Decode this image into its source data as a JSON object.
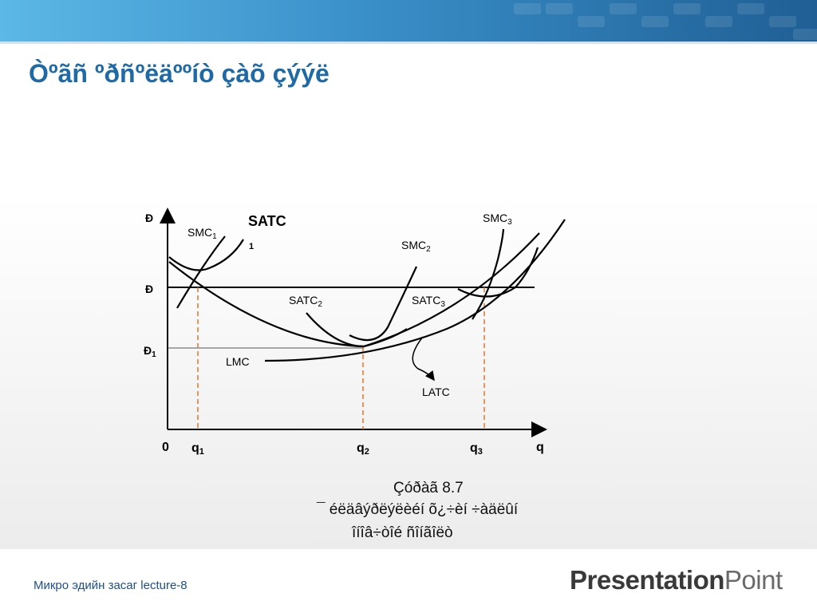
{
  "slide": {
    "title": "Òºãñ ºðñºëäººíò çàõ çýýë",
    "caption_line1": "Çóðàã 8.7",
    "caption_line2": "¯ éëäâýðëýëèéí õ¿÷èí ÷àäëûí",
    "caption_line3": "îíîâ÷òîé ñîíãîëò"
  },
  "diagram": {
    "axis_y_top": "Ð",
    "axis_y_mid": "Ð",
    "axis_y_low": "Ð",
    "axis_y_low_sub": "1",
    "origin": "0",
    "axis_x": "q",
    "q1": "q",
    "q1_sub": "1",
    "q2": "q",
    "q2_sub": "2",
    "q3": "q",
    "q3_sub": "3",
    "smc1": "SMC",
    "smc1_sub": "1",
    "smc2": "SMC",
    "smc2_sub": "2",
    "smc3": "SMC",
    "smc3_sub": "3",
    "satc1": "SATC",
    "satc1_sub": "1",
    "satc2": "SATC",
    "satc2_sub": "2",
    "satc3": "SATC",
    "satc3_sub": "3",
    "lmc": "LMC",
    "latc": "LATC"
  },
  "footer": {
    "course": "Микро эдийн засаг  lecture-8",
    "brand_bold": "Presentation",
    "brand_light": "Point"
  },
  "colors": {
    "header_dark": "#1f5f95",
    "header_light": "#5cb8e6",
    "title": "#1e6aa6",
    "guide_lines": "#e8732a",
    "curves": "#000000"
  }
}
